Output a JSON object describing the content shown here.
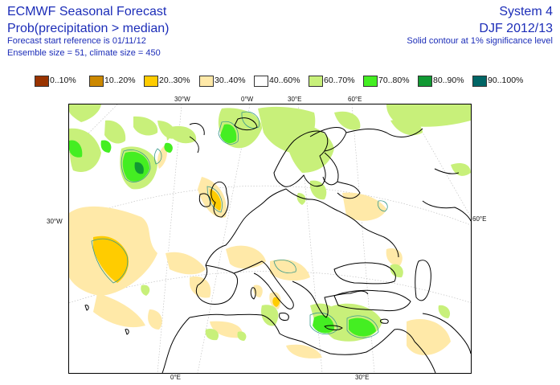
{
  "header": {
    "title": "ECMWF Seasonal Forecast",
    "subtitle": "Prob(precipitation > median)",
    "start_ref": "Forecast start reference is 01/11/12",
    "ensemble": "Ensemble size = 51, climate size = 450",
    "system": "System 4",
    "period": "DJF 2012/13",
    "contour_note": "Solid contour at 1% significance level"
  },
  "legend": [
    {
      "label": "0..10%",
      "color": "#993300"
    },
    {
      "label": "10..20%",
      "color": "#cc8800"
    },
    {
      "label": "20..30%",
      "color": "#ffcc00"
    },
    {
      "label": "30..40%",
      "color": "#ffe9a8"
    },
    {
      "label": "40..60%",
      "color": "#ffffff"
    },
    {
      "label": "60..70%",
      "color": "#c8f07a"
    },
    {
      "label": "70..80%",
      "color": "#44ee22"
    },
    {
      "label": "80..90%",
      "color": "#119933"
    },
    {
      "label": "90..100%",
      "color": "#006666"
    }
  ],
  "axis_labels": {
    "top": [
      "30°W",
      "0°W",
      "30°E",
      "60°E"
    ],
    "left": "30°W",
    "right": "60°E",
    "bottom": [
      "0°E",
      "30°E"
    ]
  }
}
